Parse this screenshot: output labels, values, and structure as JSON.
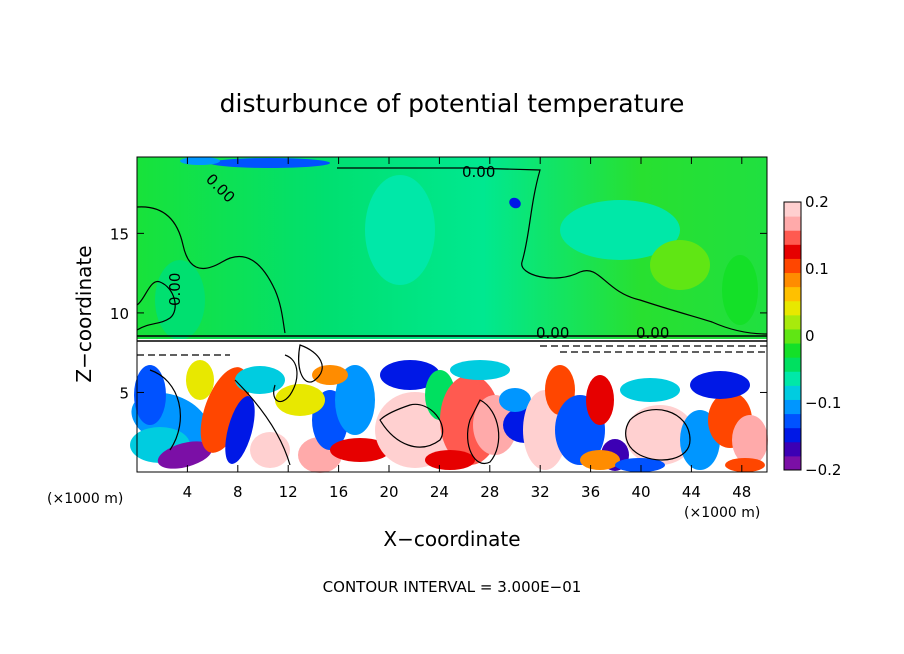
{
  "chart_data": {
    "type": "heatmap",
    "title": "disturbunce of potential temperature",
    "xlabel": "X−coordinate",
    "ylabel": "Z−coordinate",
    "x_unit_left": "(×1000 m)",
    "x_unit_right": "(×1000 m)",
    "xlim": [
      0,
      50
    ],
    "ylim": [
      0,
      19.8
    ],
    "xticks": [
      "4",
      "8",
      "12",
      "16",
      "20",
      "24",
      "28",
      "32",
      "36",
      "40",
      "44",
      "48"
    ],
    "xtick_values": [
      4,
      8,
      12,
      16,
      20,
      24,
      28,
      32,
      36,
      40,
      44,
      48
    ],
    "yticks": [
      "5",
      "10",
      "15"
    ],
    "ytick_values": [
      5,
      10,
      15
    ],
    "colorbar": {
      "min": -0.2,
      "max": 0.2,
      "ticks": [
        "0.2",
        "0.1",
        "0",
        "−0.1",
        "−0.2"
      ],
      "tick_values": [
        0.2,
        0.1,
        0,
        -0.1,
        -0.2
      ],
      "colors": [
        "#7b0fa6",
        "#3c00b4",
        "#0018e6",
        "#0052ff",
        "#0096ff",
        "#00cce0",
        "#00e8a8",
        "#00e060",
        "#14e028",
        "#60e614",
        "#a8ea0c",
        "#e8e800",
        "#ffc000",
        "#ff8c00",
        "#ff4600",
        "#e60000",
        "#ff5a50",
        "#ffaaaa",
        "#ffd0d0"
      ]
    },
    "contour_labels": [
      "0.00",
      "0.00",
      "0.00",
      "0.00",
      "0.00"
    ],
    "upper_layer_value": 0,
    "lower_layer_range": [
      -0.2,
      0.2
    ],
    "layer_boundary_z": 8.6,
    "grid": false
  },
  "footer_text": "CONTOUR INTERVAL = 3.000E−01"
}
